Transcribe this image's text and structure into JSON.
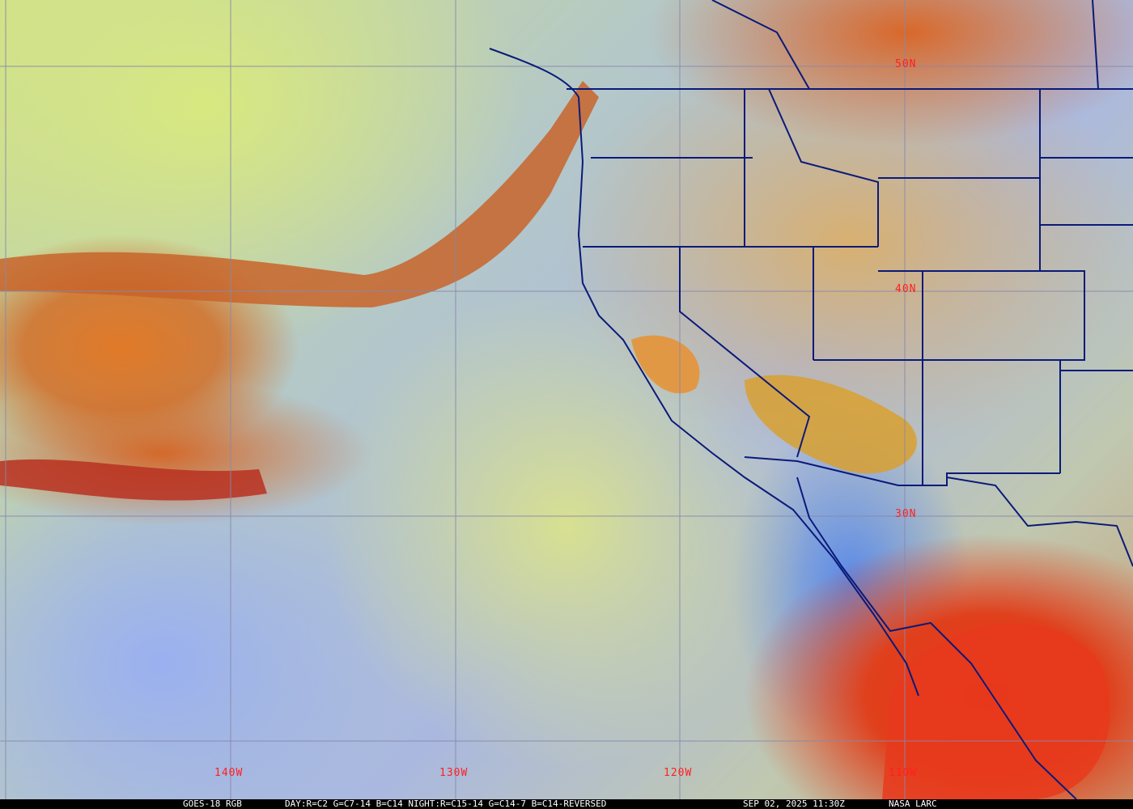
{
  "map": {
    "longitude_labels": [
      "140W",
      "130W",
      "120W",
      "110W"
    ],
    "latitude_labels": [
      "50N",
      "40N",
      "30N"
    ],
    "colors": {
      "grid": "#8888aa",
      "borders": "#0a1a7a",
      "labels": "#ff2020"
    }
  },
  "caption": {
    "product": "GOES-18 RGB",
    "recipe": "DAY:R=C2 G=C7-14 B=C14 NIGHT:R=C15-14 G=C14-7 B=C14-REVERSED",
    "timestamp": "SEP 02, 2025 11:30Z",
    "credit": "NASA LARC"
  }
}
